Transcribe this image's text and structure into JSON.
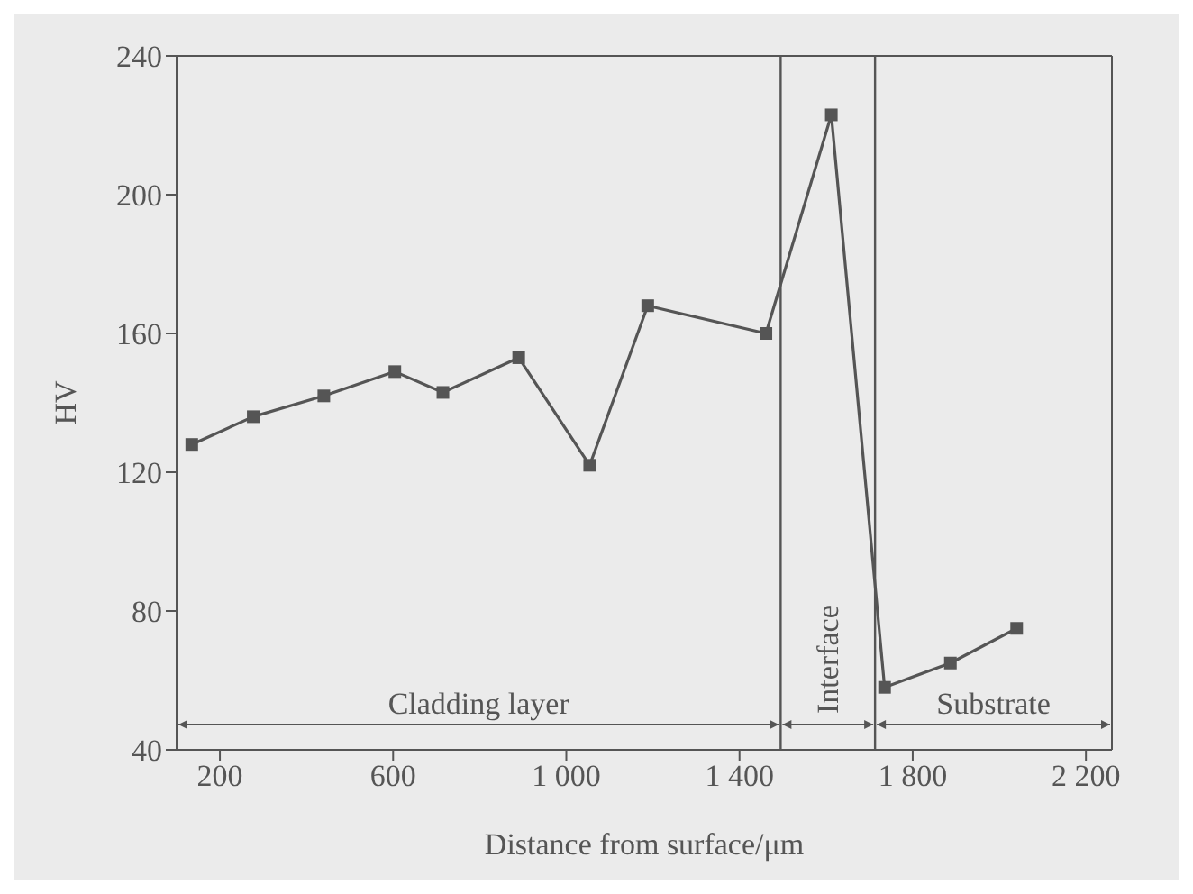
{
  "chart_data": {
    "type": "line",
    "xlabel": "Distance from surface/μm",
    "ylabel": "HV",
    "x": [
      135,
      277,
      440,
      604,
      715,
      890,
      1054,
      1188,
      1461,
      1612,
      1735,
      1887,
      2040
    ],
    "series": [
      {
        "color": "#555555",
        "values": [
          128,
          136,
          142,
          149,
          143,
          153,
          122,
          168,
          160,
          223,
          58,
          65,
          75
        ]
      }
    ],
    "xlim": [
      100,
      2260
    ],
    "xticks": [
      200,
      600,
      {
        "value": 1000,
        "label": "1 000"
      },
      {
        "value": 1400,
        "label": "1 400"
      },
      {
        "value": 1800,
        "label": "1 800"
      },
      {
        "value": 2200,
        "label": "2 200"
      }
    ],
    "ylim": [
      40,
      240
    ],
    "yticks": [
      40,
      80,
      120,
      160,
      200,
      240
    ],
    "ref_lines": [
      {
        "axis": "x",
        "value": 1495
      },
      {
        "axis": "x",
        "value": 1713
      }
    ],
    "annotations": [
      "Cladding layer",
      "Interface",
      "Substrate"
    ],
    "grid": false,
    "legend": false,
    "marker": "square",
    "line_style": "solid"
  }
}
